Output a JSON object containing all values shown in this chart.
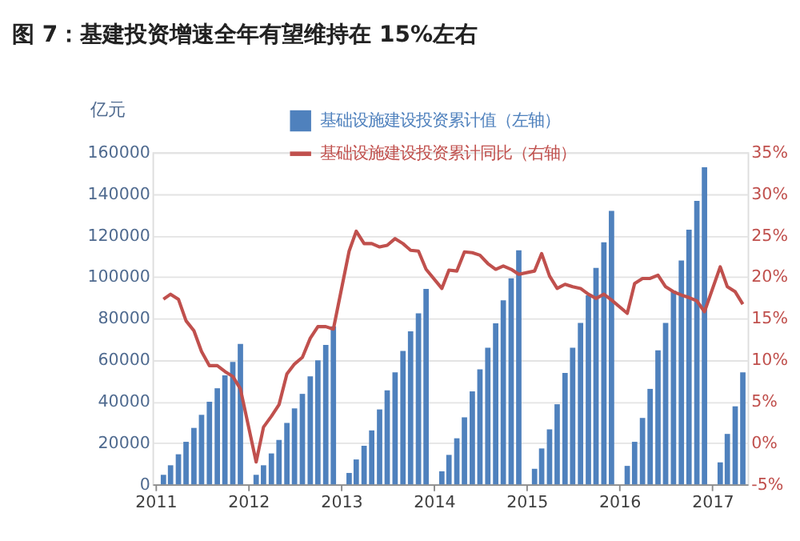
{
  "chart_data": {
    "type": "bar",
    "title": "图 7：基建投资增速全年有望维持在 15%左右",
    "ylabel": "亿元",
    "x": [
      "2011-02",
      "2011-03",
      "2011-04",
      "2011-05",
      "2011-06",
      "2011-07",
      "2011-08",
      "2011-09",
      "2011-10",
      "2011-11",
      "2011-12",
      "2012-02",
      "2012-03",
      "2012-04",
      "2012-05",
      "2012-06",
      "2012-07",
      "2012-08",
      "2012-09",
      "2012-10",
      "2012-11",
      "2012-12",
      "2013-02",
      "2013-03",
      "2013-04",
      "2013-05",
      "2013-06",
      "2013-07",
      "2013-08",
      "2013-09",
      "2013-10",
      "2013-11",
      "2013-12",
      "2014-02",
      "2014-03",
      "2014-04",
      "2014-05",
      "2014-06",
      "2014-07",
      "2014-08",
      "2014-09",
      "2014-10",
      "2014-11",
      "2014-12",
      "2015-02",
      "2015-03",
      "2015-04",
      "2015-05",
      "2015-06",
      "2015-07",
      "2015-08",
      "2015-09",
      "2015-10",
      "2015-11",
      "2015-12",
      "2016-02",
      "2016-03",
      "2016-04",
      "2016-05",
      "2016-06",
      "2016-07",
      "2016-08",
      "2016-09",
      "2016-10",
      "2016-11",
      "2016-12",
      "2017-02",
      "2017-03",
      "2017-04",
      "2017-05"
    ],
    "series": [
      {
        "name": "基础设施建设投资累计值（左轴）",
        "color": "#4f81bd",
        "values": [
          4600,
          9200,
          14500,
          20500,
          27200,
          33500,
          39800,
          46300,
          52500,
          59000,
          67700,
          4600,
          9200,
          14900,
          21400,
          29600,
          36600,
          43600,
          52000,
          59800,
          67200,
          76100,
          5500,
          12000,
          18600,
          26000,
          36100,
          45300,
          54000,
          64300,
          73700,
          82400,
          94200,
          6300,
          14200,
          22200,
          32300,
          44800,
          55400,
          65800,
          77600,
          88700,
          99300,
          112800,
          7500,
          17300,
          26500,
          38600,
          53700,
          65800,
          77800,
          91100,
          104300,
          116600,
          131800,
          8900,
          20500,
          32000,
          46000,
          64600,
          77800,
          93300,
          107900,
          122700,
          136600,
          152800,
          10600,
          24300,
          37600,
          54000
        ]
      },
      {
        "name": "基础设施建设投资累计同比（右轴）",
        "type": "line",
        "axis": "y2",
        "color": "#c0504d",
        "values": [
          17.3,
          17.9,
          17.3,
          14.7,
          13.5,
          11.0,
          9.3,
          9.3,
          8.6,
          8.0,
          6.5,
          -2.3,
          1.9,
          3.2,
          4.6,
          8.3,
          9.5,
          10.3,
          12.6,
          14.0,
          14.0,
          13.7,
          23.1,
          25.5,
          24.0,
          24.0,
          23.6,
          23.8,
          24.6,
          24.0,
          23.2,
          23.1,
          20.9,
          18.6,
          20.8,
          20.7,
          23.0,
          22.9,
          22.6,
          21.6,
          20.9,
          21.3,
          20.9,
          20.3,
          20.7,
          22.8,
          20.1,
          18.6,
          19.1,
          18.8,
          18.6,
          17.9,
          17.4,
          17.9,
          17.2,
          15.6,
          19.2,
          19.8,
          19.8,
          20.2,
          18.8,
          18.2,
          17.8,
          17.5,
          17.1,
          15.8,
          21.2,
          18.8,
          18.2,
          16.7
        ]
      }
    ],
    "xlim": [
      "2010-12-20",
      "2017-05-20"
    ],
    "xticks": [
      "2011",
      "2012",
      "2013",
      "2014",
      "2015",
      "2016",
      "2017"
    ],
    "ylim": [
      0,
      160000
    ],
    "yticks": [
      0,
      20000,
      40000,
      60000,
      80000,
      100000,
      120000,
      140000,
      160000
    ],
    "y2lim": [
      -5,
      35
    ],
    "y2ticks": [
      {
        "value": -5,
        "label": "-5%"
      },
      {
        "value": 0,
        "label": "0%"
      },
      {
        "value": 5,
        "label": "5%"
      },
      {
        "value": 10,
        "label": "10%"
      },
      {
        "value": 15,
        "label": "15%"
      },
      {
        "value": 20,
        "label": "20%"
      },
      {
        "value": 25,
        "label": "25%"
      },
      {
        "value": 30,
        "label": "30%"
      },
      {
        "value": 35,
        "label": "35%"
      }
    ],
    "grid": "y",
    "legend": "top"
  }
}
